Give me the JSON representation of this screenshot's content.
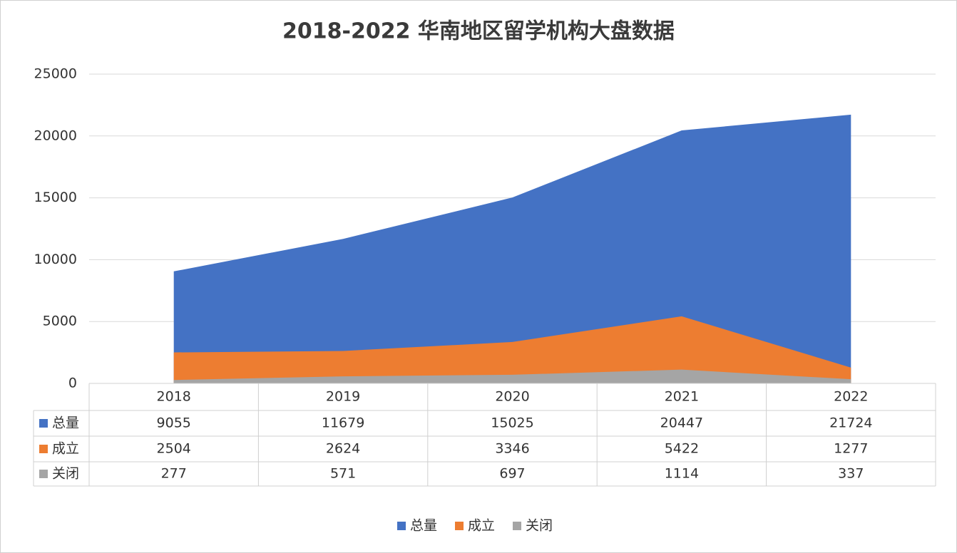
{
  "chart_data": {
    "type": "area",
    "title": "2018-2022 华南地区留学机构大盘数据",
    "categories": [
      "2018",
      "2019",
      "2020",
      "2021",
      "2022"
    ],
    "series": [
      {
        "name": "总量",
        "color": "#4472c4",
        "values": [
          9055,
          11679,
          15025,
          20447,
          21724
        ]
      },
      {
        "name": "成立",
        "color": "#ed7d31",
        "values": [
          2504,
          2624,
          3346,
          5422,
          1277
        ]
      },
      {
        "name": "关闭",
        "color": "#a5a5a5",
        "values": [
          277,
          571,
          697,
          1114,
          337
        ]
      }
    ],
    "ylim": [
      0,
      25000
    ],
    "yticks": [
      0,
      5000,
      10000,
      15000,
      20000,
      25000
    ],
    "grid": true
  }
}
